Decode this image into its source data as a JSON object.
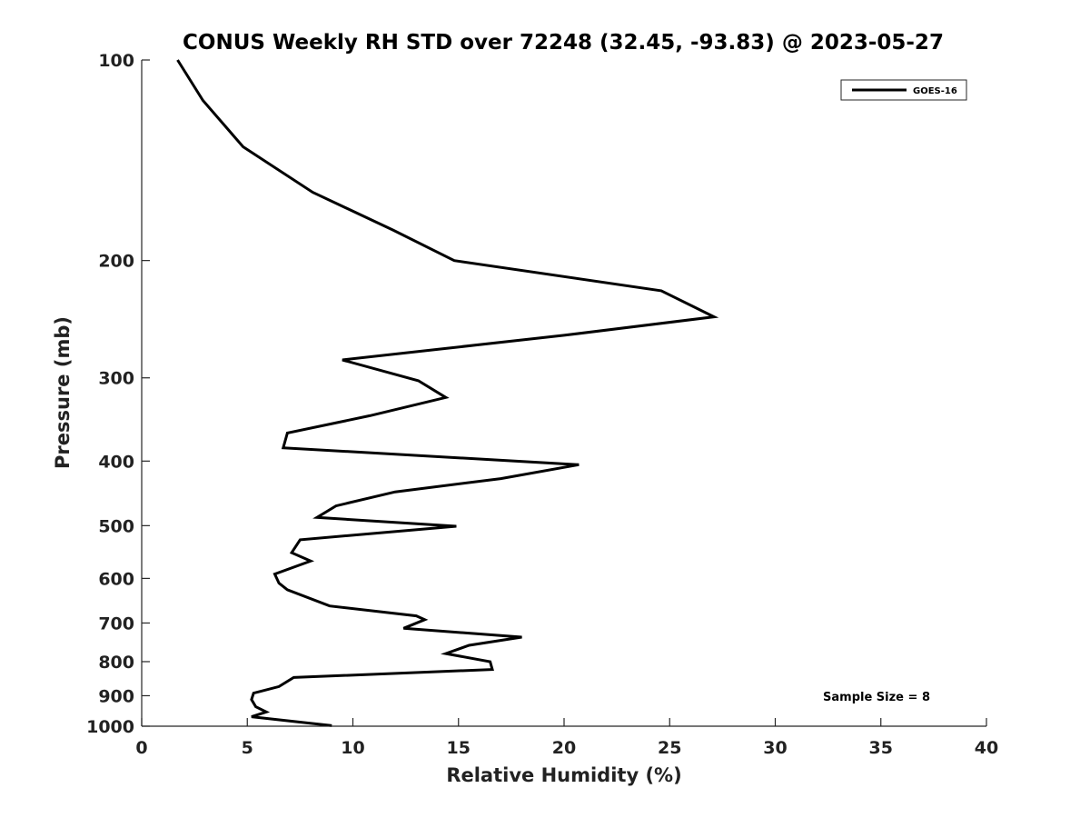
{
  "chart_data": {
    "type": "line",
    "title": "CONUS Weekly RH STD over 72248 (32.45, -93.83) @ 2023-05-27",
    "xlabel": "Relative Humidity (%)",
    "ylabel": "Pressure (mb)",
    "xlim": [
      0,
      40
    ],
    "ylim": [
      1000,
      100
    ],
    "yscale": "log",
    "y_inverted": true,
    "grid": false,
    "legend_position": "top-right",
    "x_ticks": [
      0,
      5,
      10,
      15,
      20,
      25,
      30,
      35,
      40
    ],
    "y_ticks": [
      100,
      200,
      300,
      400,
      500,
      600,
      700,
      800,
      900,
      1000
    ],
    "series": [
      {
        "name": "GOES-16",
        "color": "#000000",
        "points": [
          [
            1.7,
            100
          ],
          [
            2.9,
            115
          ],
          [
            4.8,
            135
          ],
          [
            8.1,
            158
          ],
          [
            11.9,
            180
          ],
          [
            14.8,
            200
          ],
          [
            24.6,
            222
          ],
          [
            27.1,
            243
          ],
          [
            20.0,
            259
          ],
          [
            9.5,
            282
          ],
          [
            13.1,
            303
          ],
          [
            14.4,
            321
          ],
          [
            10.8,
            342
          ],
          [
            6.9,
            363
          ],
          [
            6.7,
            382
          ],
          [
            20.7,
            405
          ],
          [
            17.0,
            425
          ],
          [
            12.0,
            445
          ],
          [
            9.2,
            467
          ],
          [
            8.3,
            486
          ],
          [
            14.9,
            501
          ],
          [
            7.5,
            525
          ],
          [
            7.1,
            549
          ],
          [
            8.0,
            565
          ],
          [
            6.3,
            591
          ],
          [
            6.5,
            610
          ],
          [
            6.9,
            624
          ],
          [
            8.9,
            660
          ],
          [
            13.0,
            683
          ],
          [
            13.4,
            692
          ],
          [
            12.4,
            713
          ],
          [
            18.0,
            735
          ],
          [
            15.5,
            756
          ],
          [
            14.4,
            778
          ],
          [
            16.5,
            800
          ],
          [
            16.6,
            822
          ],
          [
            7.2,
            845
          ],
          [
            6.5,
            872
          ],
          [
            5.3,
            892
          ],
          [
            5.2,
            912
          ],
          [
            5.4,
            935
          ],
          [
            5.9,
            952
          ],
          [
            5.2,
            968
          ],
          [
            9.0,
            998
          ]
        ]
      }
    ],
    "annotations": [
      {
        "text": "Sample Size = 8",
        "position": "bottom-right"
      }
    ]
  }
}
